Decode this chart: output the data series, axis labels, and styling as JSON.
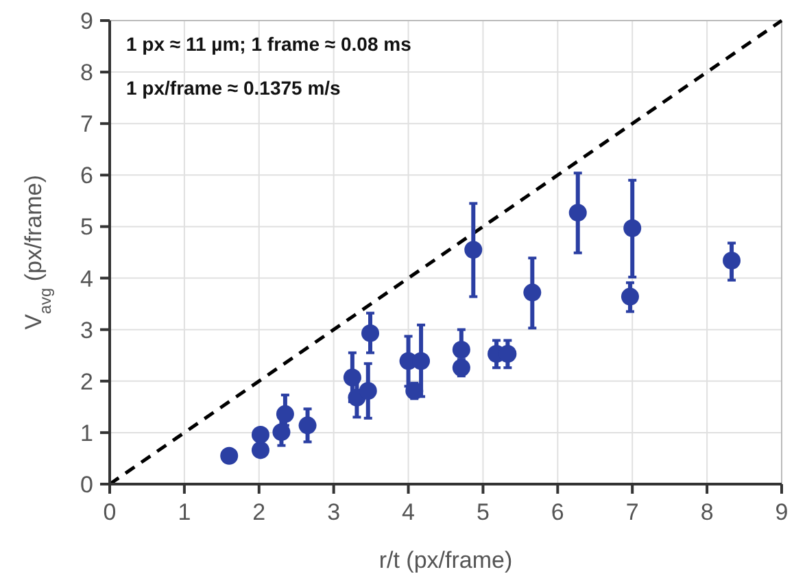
{
  "chart_data": {
    "type": "scatter",
    "xlabel": "r/t (px/frame)",
    "ylabel": "V$_{avg}$ (px/frame)",
    "xlim": [
      0,
      9
    ],
    "ylim": [
      0,
      9
    ],
    "xticks": [
      0,
      1,
      2,
      3,
      4,
      5,
      6,
      7,
      8,
      9
    ],
    "yticks": [
      0,
      1,
      2,
      3,
      4,
      5,
      6,
      7,
      8,
      9
    ],
    "grid": true,
    "marker": "circle",
    "annotations": [
      "1 px ≈ 11 µm; 1 frame ≈ 0.08 ms",
      "1 px/frame ≈ 0.1375 m/s"
    ],
    "series": [
      {
        "type": "line",
        "color": "#000000",
        "line_style": "dashed",
        "marker": "none",
        "x": [
          0,
          9
        ],
        "values": [
          0,
          9
        ]
      },
      {
        "color": "#2b3fa3",
        "x": [
          1.6,
          2.02,
          2.02,
          2.3,
          2.35,
          2.65,
          3.25,
          3.31,
          3.46,
          3.49,
          4.0,
          4.17,
          4.08,
          4.87,
          4.71,
          4.71,
          5.18,
          5.33,
          5.66,
          6.27,
          7.0,
          6.97,
          8.33
        ],
        "values": [
          0.55,
          0.66,
          0.96,
          1.01,
          1.36,
          1.14,
          2.07,
          1.68,
          1.81,
          2.93,
          2.39,
          2.39,
          1.81,
          4.55,
          2.61,
          2.26,
          2.53,
          2.53,
          3.72,
          5.27,
          4.97,
          3.64,
          4.34
        ],
        "errors": [
          null,
          null,
          null,
          [
            0.75,
            1.3
          ],
          [
            1.14,
            1.73
          ],
          [
            0.82,
            1.46
          ],
          [
            1.6,
            2.55
          ],
          [
            1.3,
            2.05
          ],
          [
            1.28,
            2.34
          ],
          [
            2.55,
            3.32
          ],
          [
            1.9,
            2.87
          ],
          [
            1.7,
            3.09
          ],
          [
            1.66,
            1.96
          ],
          [
            3.64,
            5.45
          ],
          [
            2.61,
            3.0
          ],
          [
            2.1,
            2.42
          ],
          [
            2.26,
            2.79
          ],
          [
            2.26,
            2.79
          ],
          [
            3.03,
            4.39
          ],
          [
            4.49,
            6.04
          ],
          [
            4.02,
            5.9
          ],
          [
            3.35,
            3.91
          ],
          [
            3.96,
            4.68
          ]
        ]
      }
    ]
  }
}
